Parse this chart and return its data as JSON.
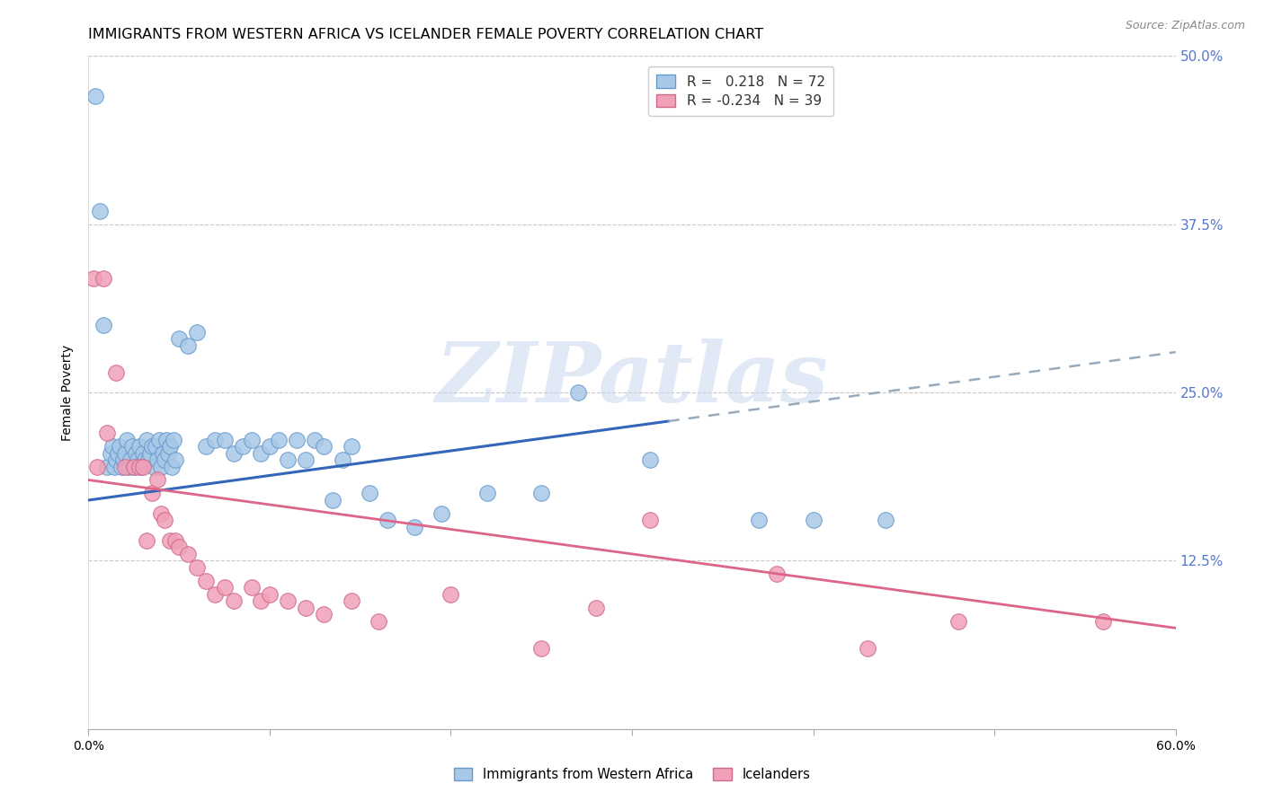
{
  "title": "IMMIGRANTS FROM WESTERN AFRICA VS ICELANDER FEMALE POVERTY CORRELATION CHART",
  "source": "Source: ZipAtlas.com",
  "ylabel": "Female Poverty",
  "xlim": [
    0.0,
    0.6
  ],
  "ylim": [
    0.0,
    0.5
  ],
  "watermark": "ZIPatlas",
  "background_color": "#ffffff",
  "grid_color": "#c8c8c8",
  "right_axis_color": "#5577cc",
  "blue_color": "#a8c8e8",
  "blue_edge": "#6699cc",
  "pink_color": "#f0a0b8",
  "pink_edge": "#d06888",
  "blue_line_color": "#3366bb",
  "blue_dash_color": "#99aabb",
  "pink_line_color": "#dd6688",
  "blue_scatter": [
    [
      0.004,
      0.47
    ],
    [
      0.006,
      0.385
    ],
    [
      0.008,
      0.3
    ],
    [
      0.01,
      0.195
    ],
    [
      0.012,
      0.205
    ],
    [
      0.013,
      0.21
    ],
    [
      0.014,
      0.195
    ],
    [
      0.015,
      0.2
    ],
    [
      0.016,
      0.205
    ],
    [
      0.017,
      0.21
    ],
    [
      0.018,
      0.195
    ],
    [
      0.019,
      0.2
    ],
    [
      0.02,
      0.205
    ],
    [
      0.021,
      0.215
    ],
    [
      0.022,
      0.195
    ],
    [
      0.023,
      0.2
    ],
    [
      0.024,
      0.21
    ],
    [
      0.025,
      0.195
    ],
    [
      0.026,
      0.205
    ],
    [
      0.027,
      0.2
    ],
    [
      0.028,
      0.21
    ],
    [
      0.029,
      0.195
    ],
    [
      0.03,
      0.205
    ],
    [
      0.031,
      0.2
    ],
    [
      0.032,
      0.215
    ],
    [
      0.033,
      0.2
    ],
    [
      0.034,
      0.205
    ],
    [
      0.035,
      0.21
    ],
    [
      0.036,
      0.195
    ],
    [
      0.037,
      0.21
    ],
    [
      0.038,
      0.2
    ],
    [
      0.039,
      0.215
    ],
    [
      0.04,
      0.195
    ],
    [
      0.041,
      0.205
    ],
    [
      0.042,
      0.2
    ],
    [
      0.043,
      0.215
    ],
    [
      0.044,
      0.205
    ],
    [
      0.045,
      0.21
    ],
    [
      0.046,
      0.195
    ],
    [
      0.047,
      0.215
    ],
    [
      0.048,
      0.2
    ],
    [
      0.05,
      0.29
    ],
    [
      0.055,
      0.285
    ],
    [
      0.06,
      0.295
    ],
    [
      0.065,
      0.21
    ],
    [
      0.07,
      0.215
    ],
    [
      0.075,
      0.215
    ],
    [
      0.08,
      0.205
    ],
    [
      0.085,
      0.21
    ],
    [
      0.09,
      0.215
    ],
    [
      0.095,
      0.205
    ],
    [
      0.1,
      0.21
    ],
    [
      0.105,
      0.215
    ],
    [
      0.11,
      0.2
    ],
    [
      0.115,
      0.215
    ],
    [
      0.12,
      0.2
    ],
    [
      0.125,
      0.215
    ],
    [
      0.13,
      0.21
    ],
    [
      0.135,
      0.17
    ],
    [
      0.14,
      0.2
    ],
    [
      0.145,
      0.21
    ],
    [
      0.155,
      0.175
    ],
    [
      0.165,
      0.155
    ],
    [
      0.18,
      0.15
    ],
    [
      0.195,
      0.16
    ],
    [
      0.22,
      0.175
    ],
    [
      0.25,
      0.175
    ],
    [
      0.27,
      0.25
    ],
    [
      0.31,
      0.2
    ],
    [
      0.37,
      0.155
    ],
    [
      0.4,
      0.155
    ],
    [
      0.44,
      0.155
    ]
  ],
  "pink_scatter": [
    [
      0.003,
      0.335
    ],
    [
      0.005,
      0.195
    ],
    [
      0.008,
      0.335
    ],
    [
      0.01,
      0.22
    ],
    [
      0.015,
      0.265
    ],
    [
      0.02,
      0.195
    ],
    [
      0.025,
      0.195
    ],
    [
      0.028,
      0.195
    ],
    [
      0.03,
      0.195
    ],
    [
      0.032,
      0.14
    ],
    [
      0.035,
      0.175
    ],
    [
      0.038,
      0.185
    ],
    [
      0.04,
      0.16
    ],
    [
      0.042,
      0.155
    ],
    [
      0.045,
      0.14
    ],
    [
      0.048,
      0.14
    ],
    [
      0.05,
      0.135
    ],
    [
      0.055,
      0.13
    ],
    [
      0.06,
      0.12
    ],
    [
      0.065,
      0.11
    ],
    [
      0.07,
      0.1
    ],
    [
      0.075,
      0.105
    ],
    [
      0.08,
      0.095
    ],
    [
      0.09,
      0.105
    ],
    [
      0.095,
      0.095
    ],
    [
      0.1,
      0.1
    ],
    [
      0.11,
      0.095
    ],
    [
      0.12,
      0.09
    ],
    [
      0.13,
      0.085
    ],
    [
      0.145,
      0.095
    ],
    [
      0.16,
      0.08
    ],
    [
      0.2,
      0.1
    ],
    [
      0.25,
      0.06
    ],
    [
      0.28,
      0.09
    ],
    [
      0.31,
      0.155
    ],
    [
      0.38,
      0.115
    ],
    [
      0.43,
      0.06
    ],
    [
      0.48,
      0.08
    ],
    [
      0.56,
      0.08
    ]
  ],
  "blue_line": {
    "x0": 0.0,
    "x1": 0.6,
    "solid_end": 0.32,
    "y0": 0.17,
    "y1": 0.28
  },
  "pink_line": {
    "x0": 0.0,
    "x1": 0.6,
    "y0": 0.185,
    "y1": 0.075
  },
  "title_fontsize": 11.5,
  "axis_label_fontsize": 10,
  "tick_fontsize": 10,
  "legend_fontsize": 11,
  "source_fontsize": 9,
  "scatter_size": 160
}
